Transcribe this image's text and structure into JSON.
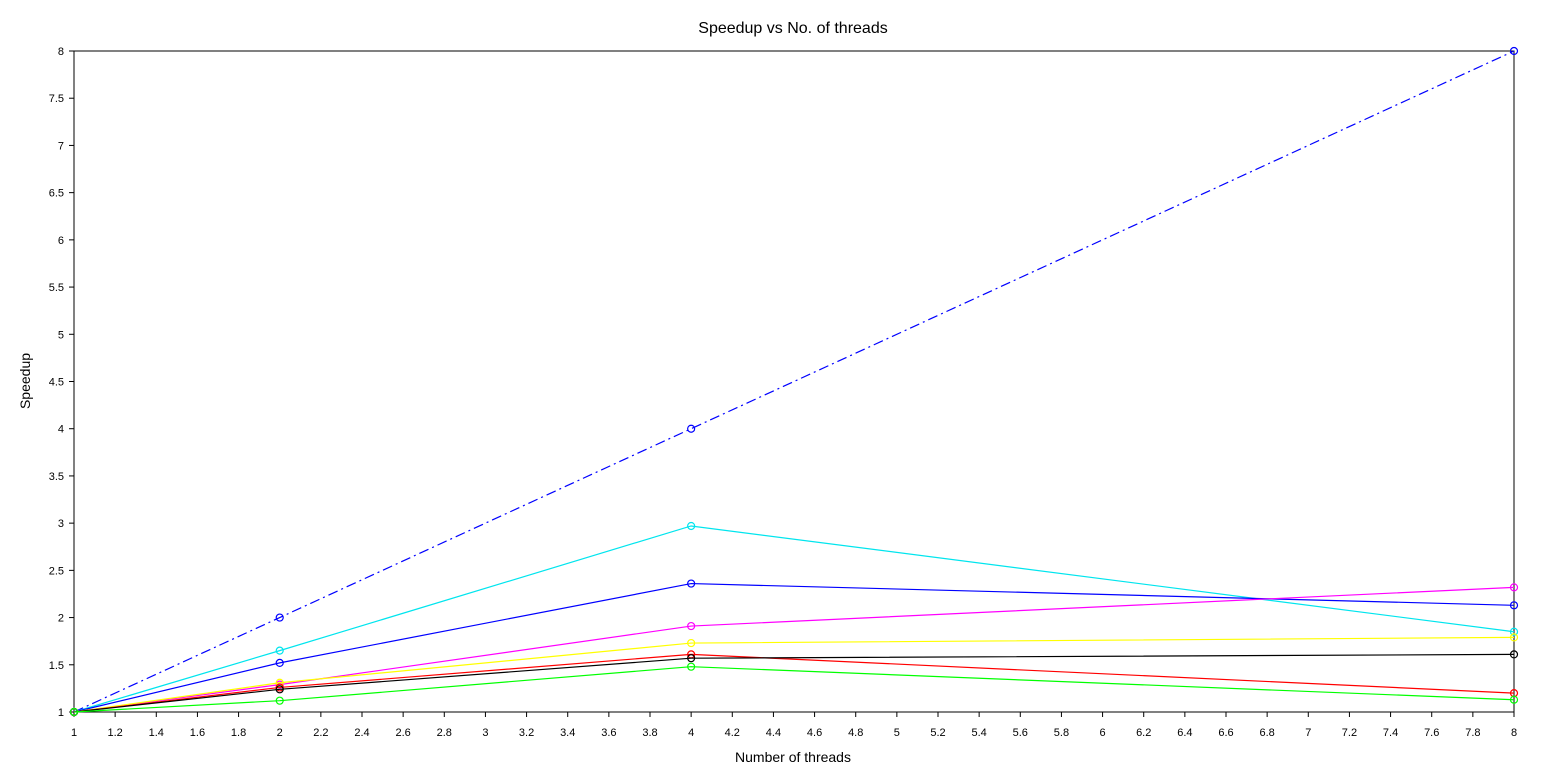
{
  "chart_data": {
    "type": "line",
    "title": "Speedup vs No. of threads",
    "xlabel": "Number of threads",
    "ylabel": "Speedup",
    "xlim": [
      1,
      8
    ],
    "ylim": [
      1,
      8
    ],
    "x_ticks": [
      "1",
      "1.2",
      "1.4",
      "1.6",
      "1.8",
      "2",
      "2.2",
      "2.4",
      "2.6",
      "2.8",
      "3",
      "3.2",
      "3.4",
      "3.6",
      "3.8",
      "4",
      "4.2",
      "4.4",
      "4.6",
      "4.8",
      "5",
      "5.2",
      "5.4",
      "5.6",
      "5.8",
      "6",
      "6.2",
      "6.4",
      "6.6",
      "6.8",
      "7",
      "7.2",
      "7.4",
      "7.6",
      "7.8",
      "8"
    ],
    "y_ticks": [
      "1",
      "1.5",
      "2",
      "2.5",
      "3",
      "3.5",
      "4",
      "4.5",
      "5",
      "5.5",
      "6",
      "6.5",
      "7",
      "7.5",
      "8"
    ],
    "grid": false,
    "legend": "none",
    "x": [
      1,
      2,
      4,
      8
    ],
    "series": [
      {
        "values": [
          1,
          2,
          4,
          8
        ],
        "color": "#0000ff",
        "style": "dashdot"
      },
      {
        "values": [
          1,
          1.65,
          2.97,
          1.85
        ],
        "color": "#00e5ee",
        "style": "solid"
      },
      {
        "values": [
          1,
          1.52,
          2.36,
          2.13
        ],
        "color": "#0000ff",
        "style": "solid"
      },
      {
        "values": [
          1,
          1.29,
          1.91,
          2.32
        ],
        "color": "#ff00ff",
        "style": "solid"
      },
      {
        "values": [
          1,
          1.31,
          1.73,
          1.79
        ],
        "color": "#ffff00",
        "style": "solid"
      },
      {
        "values": [
          1,
          1.26,
          1.61,
          1.2
        ],
        "color": "#ff0000",
        "style": "solid"
      },
      {
        "values": [
          1,
          1.24,
          1.57,
          1.61
        ],
        "color": "#000000",
        "style": "solid"
      },
      {
        "values": [
          1,
          1.12,
          1.48,
          1.13
        ],
        "color": "#00ff00",
        "style": "solid"
      }
    ]
  }
}
